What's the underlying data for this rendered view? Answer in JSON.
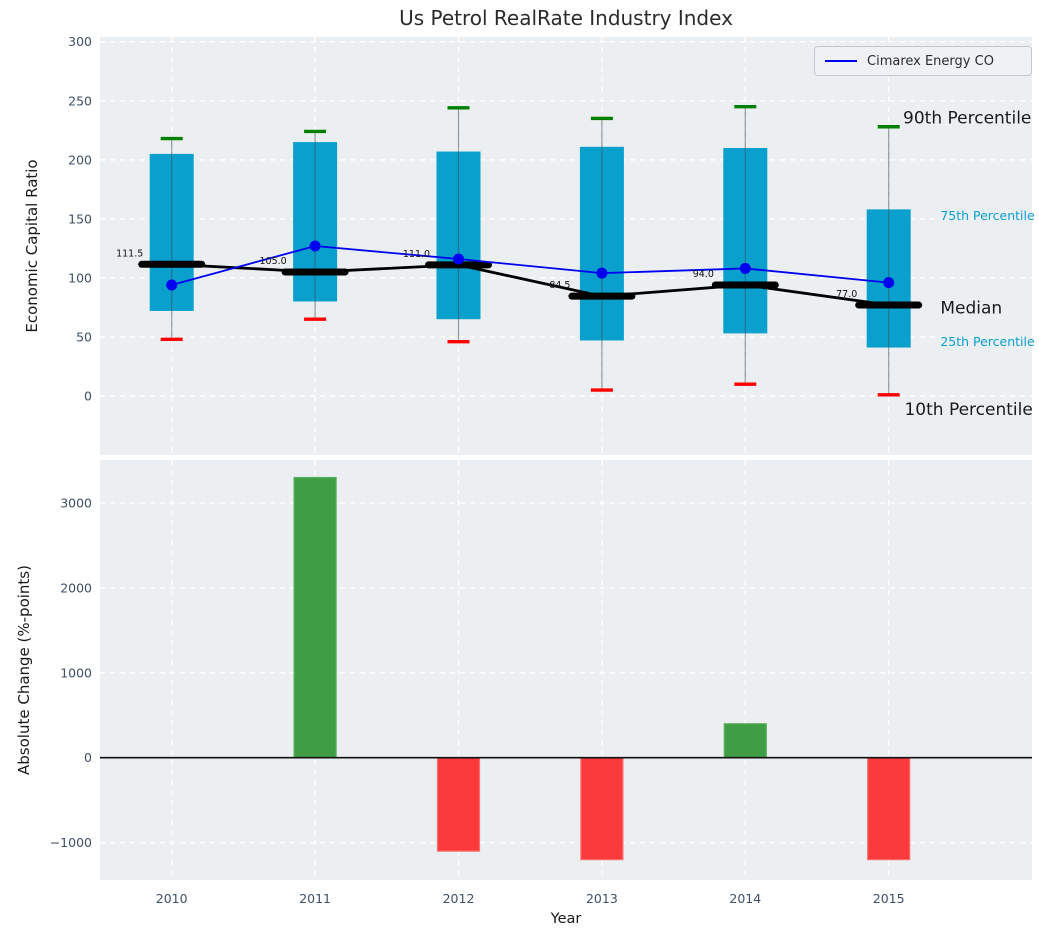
{
  "title": "Us Petrol RealRate Industry Index",
  "legend": {
    "label": "Cimarex Energy CO"
  },
  "colors": {
    "company_line": "#0000f0",
    "box_fill": "#09a0ce",
    "p90_cap": "#008000",
    "p10_cap": "#ff0000",
    "median_color": "#000000",
    "bar_positive": "#3f9e45",
    "bar_positive_edge": "#58b25c",
    "bar_negative": "#fb3b3b",
    "bar_negative_edge": "#fd6b6b",
    "percentile_label_cyan": "#0b9ed0",
    "annotation_black": "#1a1a1a",
    "tick_label": "#3d5166",
    "whisker": "#3d4f57",
    "gridline": "#ffffff",
    "zero_line": "#111111"
  },
  "chart_data": [
    {
      "type": "boxplot+line",
      "title": "Us Petrol RealRate Industry Index",
      "ylabel": "Economic Capital Ratio",
      "years": [
        2010,
        2011,
        2012,
        2013,
        2014,
        2015
      ],
      "series": {
        "p90": [
          218,
          224,
          244,
          235,
          245,
          228
        ],
        "p75": [
          205,
          215,
          207,
          211,
          210,
          158
        ],
        "median": [
          111.5,
          105.0,
          111.0,
          84.5,
          94.0,
          77.0
        ],
        "p25": [
          72,
          80,
          65,
          47,
          53,
          41
        ],
        "p10": [
          48,
          65,
          46,
          5,
          10,
          1
        ],
        "company": [
          94,
          127,
          116,
          104,
          108,
          96
        ]
      },
      "company_name": "Cimarex Energy CO",
      "median_labels": [
        "111.5",
        "105.0",
        "111.0",
        "84.5",
        "94.0",
        "77.0"
      ],
      "yticks": [
        0,
        50,
        100,
        150,
        200,
        250,
        300
      ],
      "ylim": [
        -50,
        304
      ],
      "grid": true,
      "legend_position": "upper right",
      "annotations": [
        {
          "label": "90th Percentile",
          "x": 2015.1,
          "y": 236,
          "style": "large-black"
        },
        {
          "label": "75th Percentile",
          "x": 2015.36,
          "y": 153,
          "style": "small-cyan"
        },
        {
          "label": "Median",
          "x": 2015.36,
          "y": 75,
          "style": "large-black"
        },
        {
          "label": "25th Percentile",
          "x": 2015.36,
          "y": 46,
          "style": "small-cyan"
        },
        {
          "label": "10th Percentile",
          "x": 2015.11,
          "y": -11,
          "style": "large-black"
        }
      ]
    },
    {
      "type": "bar",
      "ylabel": "Absolute Change (%-points)",
      "xlabel": "Year",
      "categories": [
        2010,
        2011,
        2012,
        2013,
        2014,
        2015
      ],
      "values": [
        0,
        3300,
        -1100,
        -1200,
        400,
        -1200
      ],
      "yticks": [
        -1000,
        0,
        1000,
        2000,
        3000
      ],
      "ylim": [
        -1440,
        3506
      ],
      "grid": true
    }
  ]
}
